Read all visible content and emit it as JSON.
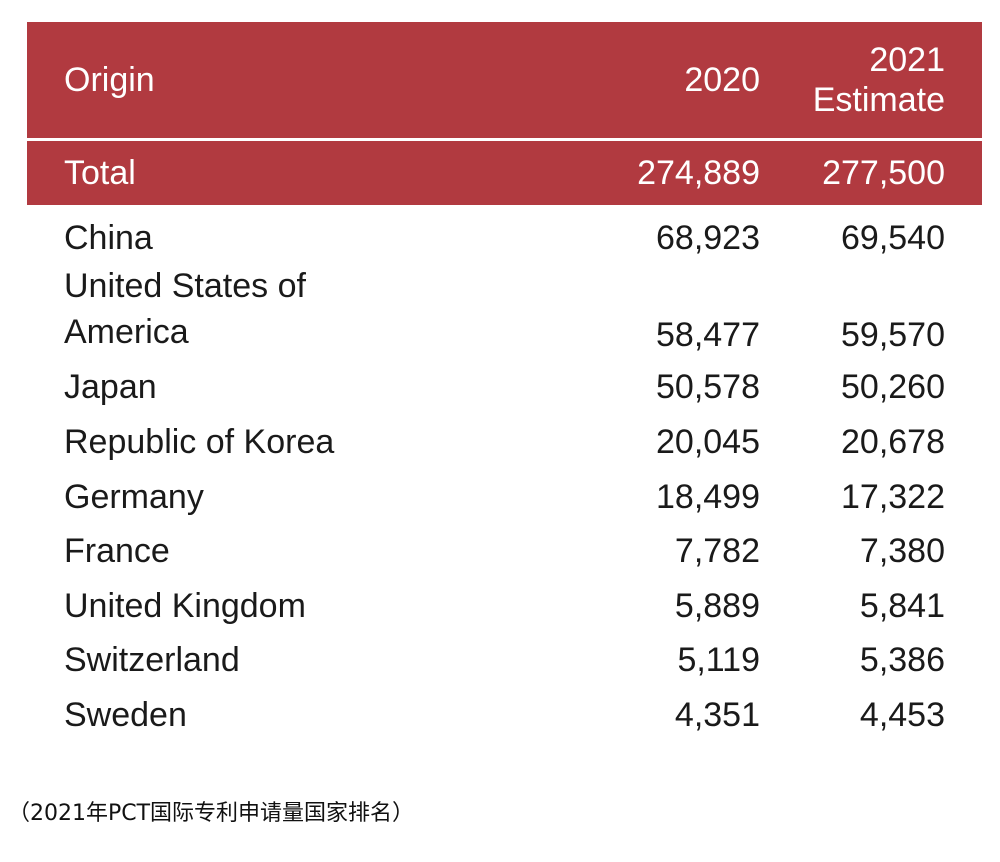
{
  "table": {
    "headers": {
      "origin": "Origin",
      "col_2020": "2020",
      "col_2021_line1": "2021",
      "col_2021_line2": "Estimate"
    },
    "total": {
      "origin": "Total",
      "v2020": "274,889",
      "v2021": "277,500"
    },
    "rows": [
      {
        "origin": "China",
        "v2020": "68,923",
        "v2021": "69,540"
      },
      {
        "origin": "United States of America",
        "v2020": "58,477",
        "v2021": "59,570"
      },
      {
        "origin": "Japan",
        "v2020": "50,578",
        "v2021": "50,260"
      },
      {
        "origin": "Republic of Korea",
        "v2020": "20,045",
        "v2021": "20,678"
      },
      {
        "origin": "Germany",
        "v2020": "18,499",
        "v2021": "17,322"
      },
      {
        "origin": "France",
        "v2020": "7,782",
        "v2021": "7,380"
      },
      {
        "origin": "United Kingdom",
        "v2020": "5,889",
        "v2021": "5,841"
      },
      {
        "origin": "Switzerland",
        "v2020": "5,119",
        "v2021": "5,386"
      },
      {
        "origin": "Sweden",
        "v2020": "4,351",
        "v2021": "4,453"
      }
    ]
  },
  "caption": "（2021年PCT国际专利申请量国家排名）",
  "colors": {
    "header_bg": "#b13a40",
    "header_text": "#ffffff"
  }
}
